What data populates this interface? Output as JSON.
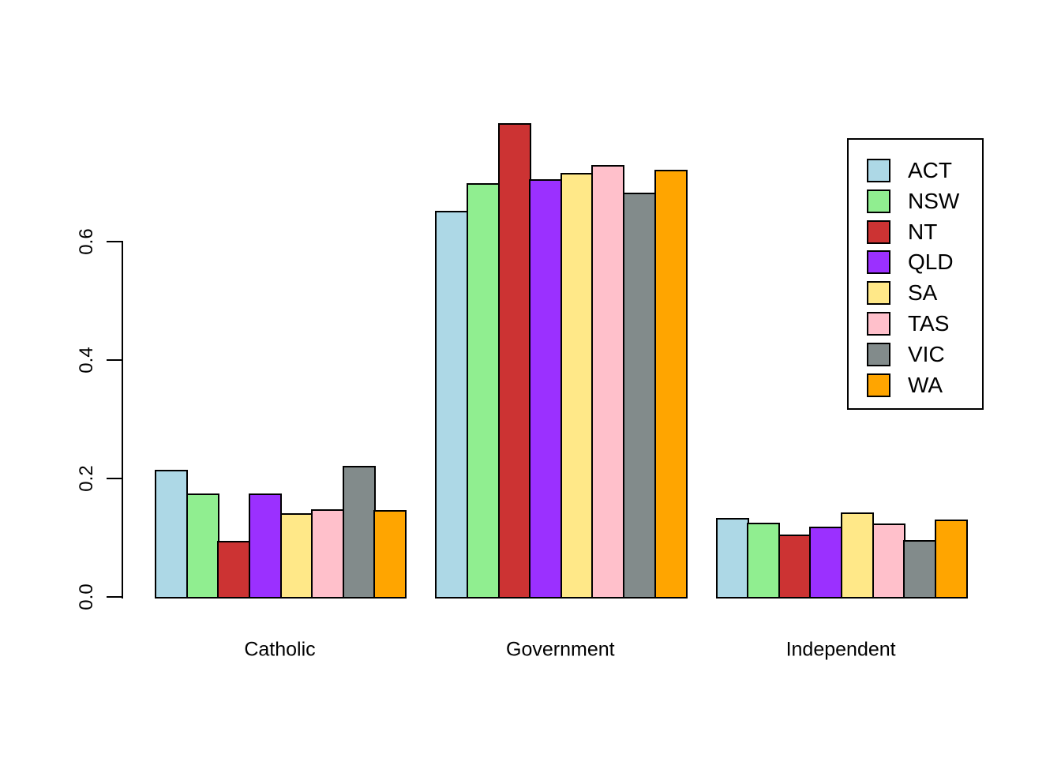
{
  "chart_data": {
    "type": "bar",
    "title": "",
    "xlabel": "",
    "ylabel": "",
    "categories": [
      "Catholic",
      "Government",
      "Independent"
    ],
    "series": [
      {
        "name": "ACT",
        "color": "#ADD8E6",
        "values": [
          0.214,
          0.652,
          0.133
        ]
      },
      {
        "name": "NSW",
        "color": "#90EE90",
        "values": [
          0.175,
          0.699,
          0.125
        ]
      },
      {
        "name": "NT",
        "color": "#CC3333",
        "values": [
          0.095,
          0.8,
          0.105
        ]
      },
      {
        "name": "QLD",
        "color": "#9B30FF",
        "values": [
          0.175,
          0.705,
          0.119
        ]
      },
      {
        "name": "SA",
        "color": "#FFE888",
        "values": [
          0.142,
          0.716,
          0.143
        ]
      },
      {
        "name": "TAS",
        "color": "#FFC0CB",
        "values": [
          0.148,
          0.729,
          0.124
        ]
      },
      {
        "name": "VIC",
        "color": "#828B8B",
        "values": [
          0.221,
          0.683,
          0.096
        ]
      },
      {
        "name": "WA",
        "color": "#FFA500",
        "values": [
          0.147,
          0.721,
          0.131
        ]
      }
    ],
    "y_axis": {
      "ticks": [
        0.0,
        0.2,
        0.4,
        0.6
      ],
      "tick_labels": [
        "0.0",
        "0.2",
        "0.4",
        "0.6"
      ],
      "ylim": [
        0,
        0.8
      ]
    },
    "legend": {
      "position": "top-right",
      "entries": [
        "ACT",
        "NSW",
        "NT",
        "QLD",
        "SA",
        "TAS",
        "VIC",
        "WA"
      ]
    },
    "grid": false,
    "bar_border_color": "#000000",
    "background_color": "#FFFFFF"
  }
}
